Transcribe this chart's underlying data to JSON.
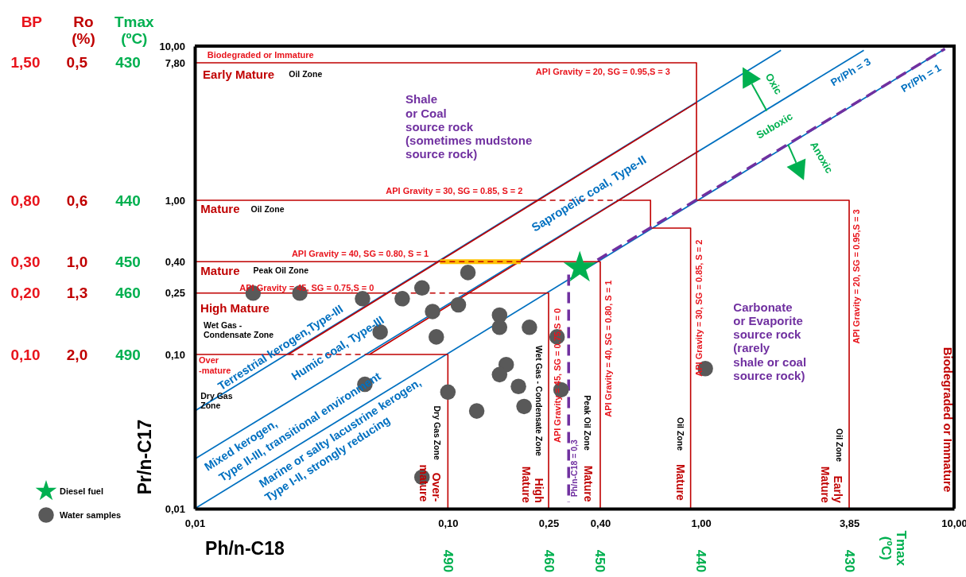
{
  "chart_data": {
    "type": "scatter",
    "log": "xy",
    "xlabel": "Ph/n-C18",
    "ylabel": "Pr/n-C17",
    "xlim": [
      0.01,
      10
    ],
    "ylim": [
      0.01,
      10
    ],
    "xticks": [
      {
        "value": 0.01,
        "label": "0,01"
      },
      {
        "value": 0.1,
        "label": "0,10"
      },
      {
        "value": 0.25,
        "label": "0,25"
      },
      {
        "value": 0.4,
        "label": "0,40"
      },
      {
        "value": 1,
        "label": "1,00"
      },
      {
        "value": 3.85,
        "label": "3,85"
      },
      {
        "value": 10,
        "label": "10,00"
      }
    ],
    "yticks": [
      {
        "value": 0.01,
        "label": "0,01"
      },
      {
        "value": 0.1,
        "label": "0,10"
      },
      {
        "value": 0.25,
        "label": "0,25"
      },
      {
        "value": 0.4,
        "label": "0,40"
      },
      {
        "value": 1,
        "label": "1,00"
      },
      {
        "value": 7.8,
        "label": "7,80"
      },
      {
        "value": 10,
        "label": "10,00"
      }
    ],
    "legend": "bottom left",
    "series": [
      {
        "type": "line",
        "color": "#0070c0",
        "line_style": "solid",
        "x": [
          0.01,
          9.2
        ],
        "values": [
          0.01,
          9.6
        ]
      },
      {
        "type": "line",
        "color": "#0070c0",
        "line_style": "solid",
        "x": [
          0.01,
          4.4
        ],
        "values": [
          0.021,
          9.4
        ]
      },
      {
        "type": "line",
        "color": "#0070c0",
        "line_style": "solid",
        "x": [
          0.01,
          2.07
        ],
        "values": [
          0.043,
          9.4
        ]
      },
      {
        "type": "line",
        "color": "#c00000",
        "line_style": "solid",
        "x": [
          0.0234,
          0.96
        ],
        "values": [
          0.1,
          4.3
        ]
      },
      {
        "type": "line",
        "color": "#c00000",
        "line_style": "solid",
        "x": [
          0.049,
          0.98
        ],
        "values": [
          0.1,
          2.09
        ]
      },
      {
        "type": "line",
        "color": "#c00000",
        "line_style": "solid",
        "x": [
          0.01,
          0.96,
          0.96,
          3.85,
          3.85
        ],
        "values": [
          7.8,
          7.8,
          1,
          1,
          0.01
        ]
      },
      {
        "type": "line",
        "color": "#c00000",
        "line_style": "solid",
        "x": [
          0.01,
          0.232
        ],
        "values": [
          1,
          1
        ]
      },
      {
        "type": "line",
        "color": "#c00000",
        "line_style": "dashed",
        "x": [
          0.232,
          0.488
        ],
        "values": [
          1,
          1
        ]
      },
      {
        "type": "line",
        "color": "#c00000",
        "line_style": "solid",
        "x": [
          0.488,
          0.632,
          0.632,
          0.91,
          0.91
        ],
        "values": [
          1,
          1,
          0.66,
          0.66,
          0.01
        ]
      },
      {
        "type": "line",
        "color": "#c00000",
        "line_style": "solid",
        "x": [
          0.01,
          0.093
        ],
        "values": [
          0.4,
          0.4
        ]
      },
      {
        "type": "line",
        "color": "#ffc000",
        "line_style": "solid",
        "x": [
          0.093,
          0.194
        ],
        "values": [
          0.4,
          0.4
        ]
      },
      {
        "type": "line",
        "color": "#c00000",
        "line_style": "dashed",
        "x": [
          0.093,
          0.194
        ],
        "values": [
          0.4,
          0.4
        ]
      },
      {
        "type": "line",
        "color": "#c00000",
        "line_style": "solid",
        "x": [
          0.194,
          0.4,
          0.4
        ],
        "values": [
          0.4,
          0.4,
          0.01
        ]
      },
      {
        "type": "line",
        "color": "#c00000",
        "line_style": "solid",
        "x": [
          0.01,
          0.055
        ],
        "values": [
          0.25,
          0.25
        ]
      },
      {
        "type": "line",
        "color": "#c00000",
        "line_style": "dashed",
        "x": [
          0.055,
          0.116
        ],
        "values": [
          0.25,
          0.25
        ]
      },
      {
        "type": "line",
        "color": "#c00000",
        "line_style": "solid",
        "x": [
          0.116,
          0.25,
          0.25
        ],
        "values": [
          0.25,
          0.25,
          0.01
        ]
      },
      {
        "type": "line",
        "color": "#c00000",
        "line_style": "solid",
        "x": [
          0.01,
          0.0234
        ],
        "values": [
          0.1,
          0.1
        ]
      },
      {
        "type": "line",
        "color": "#c00000",
        "line_style": "dashed",
        "x": [
          0.0234,
          0.0494
        ],
        "values": [
          0.1,
          0.1
        ]
      },
      {
        "type": "line",
        "color": "#c00000",
        "line_style": "solid",
        "x": [
          0.0494,
          0.1,
          0.1
        ],
        "values": [
          0.1,
          0.1,
          0.01
        ]
      },
      {
        "type": "line",
        "color": "#7030a0",
        "line_style": "dashed",
        "x": [
          0.3,
          0.3
        ],
        "values": [
          0.33,
          0.011
        ]
      },
      {
        "type": "line",
        "color": "#7030a0",
        "line_style": "dashed",
        "x": [
          0.39,
          9.2
        ],
        "values": [
          0.41,
          9.6
        ]
      },
      {
        "name": "Water samples",
        "color": "#595959",
        "marker": "circle",
        "x": [
          0.017,
          0.026,
          0.046,
          0.066,
          0.079,
          0.12,
          0.087,
          0.11,
          0.054,
          0.09,
          0.16,
          0.16,
          0.21,
          0.27,
          0.17,
          0.16,
          0.047,
          0.1,
          0.19,
          0.2,
          0.28,
          0.13,
          0.079,
          1.04
        ],
        "values": [
          0.25,
          0.25,
          0.23,
          0.23,
          0.27,
          0.34,
          0.19,
          0.21,
          0.14,
          0.13,
          0.18,
          0.15,
          0.15,
          0.13,
          0.086,
          0.074,
          0.064,
          0.057,
          0.062,
          0.046,
          0.059,
          0.043,
          0.016,
          0.081
        ]
      },
      {
        "name": "Diesel fuel",
        "color": "#00b050",
        "marker": "star",
        "x": [
          0.332
        ],
        "values": [
          0.365
        ]
      }
    ],
    "annotations": [
      "Biodegraded or Immature",
      "Early Mature",
      "Oil Zone",
      "API Gravity = 20, SG = 0.95,S = 3",
      "Shale\nor Coal\nsource rock\n(sometimes mudstone\nsource rock)",
      "API Gravity = 30, SG = 0.85, S = 2",
      "Mature",
      "Oil Zone",
      "Sapropelic coal, Type-II",
      {
        "text": "Oxic",
        "x": 1.82,
        "y": 3.8
      },
      "Pr/Ph = 3",
      "Suboxic",
      "Pr/Ph = 1",
      {
        "text": "Anoxic",
        "x": 2.21,
        "y": 2.3
      },
      "API Gravity = 40, SG = 0.80, S = 1",
      "Mature",
      "Peak Oil Zone",
      "API Gravity = 45, SG = 0.75,S = 0",
      "High Mature",
      "Wet Gas -\nCondensate Zone",
      "Over\n-mature",
      "Terrestrial kerogen,Type-III",
      "Humic coal, Type-III",
      "Mixed kerogen,",
      "Type II-III, transitional environment",
      "Marine or salty lacustrine kerogen,",
      "Type I-II, strongly reducing",
      "Dry Gas\nZone",
      "Dry Gas Zone",
      "Over-\nmature",
      "Wet Gas - Condensate Zone",
      "High\nMature",
      "API Gravity = 45, SG = 0.75,S = 0",
      "Ph/n-C18 = 0,3",
      "Peak Oil Zone",
      "Mature",
      "API Gravity = 40, SG = 0.80, S = 1",
      "API Gravity = 30, SG = 0.85, S = 2",
      "Oil Zone",
      "Mature",
      "Carbonate\nor Evaporite\nsource rock\n(rarely\nshale or coal\nsource rock)",
      "API Gravity = 20, SG = 0.95,S = 3",
      "Oil Zone",
      "Early\nMature",
      "Biodegraded or Immature",
      "BP",
      "Ro\n(%)",
      "Tmax\n(ºC)",
      "1,50",
      "0,80",
      "0,30",
      "0,20",
      "0,10",
      "0,5",
      "0,6",
      "1,0",
      "1,3",
      "2,0",
      "430",
      "440",
      "450",
      "460",
      "490",
      "490",
      "460",
      "450",
      "440",
      "430",
      "Tmax\n(ºC)"
    ]
  }
}
